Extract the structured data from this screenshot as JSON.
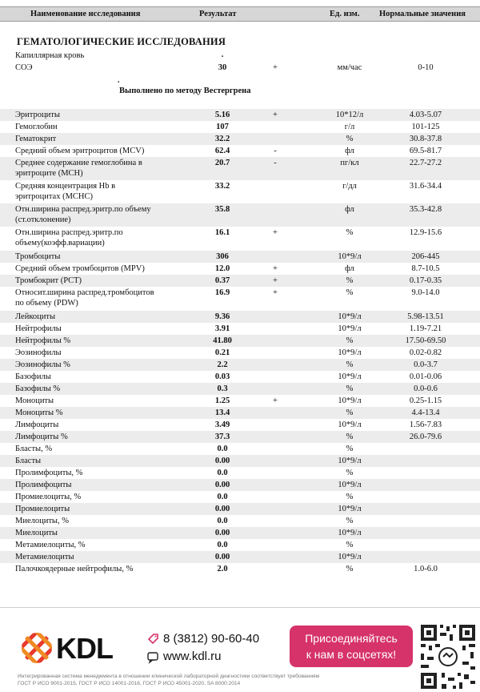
{
  "header": {
    "name": "Наименование исследования",
    "result": "Результат",
    "unit": "Ед. изм.",
    "norm": "Нормальные значения"
  },
  "section_title": "ГЕМАТОЛОГИЧЕСКИЕ ИССЛЕДОВАНИЯ",
  "capillary": {
    "label": "Капиллярная кровь",
    "value": "."
  },
  "method_note": {
    "dot": ".",
    "text": "Выполнено по методу Вестергрена"
  },
  "rows": [
    {
      "name": "СОЭ",
      "result": "30",
      "flag": "+",
      "unit": "мм/час",
      "norm": "0-10"
    },
    {
      "name": "Эритроциты",
      "result": "5.16",
      "flag": "+",
      "unit": "10*12/л",
      "norm": "4.03-5.07"
    },
    {
      "name": "Гемоглобин",
      "result": "107",
      "flag": "",
      "unit": "г/л",
      "norm": "101-125"
    },
    {
      "name": "Гематокрит",
      "result": "32.2",
      "flag": "",
      "unit": "%",
      "norm": "30.8-37.8"
    },
    {
      "name": "Средний объем эритроцитов (MCV)",
      "result": "62.4",
      "flag": "-",
      "unit": "фл",
      "norm": "69.5-81.7"
    },
    {
      "name": "Среднее содержание гемоглобина в",
      "name2": "эритроците (MCH)",
      "result": "20.7",
      "flag": "-",
      "unit": "пг/кл",
      "norm": "22.7-27.2"
    },
    {
      "name": "Средняя концентрация Hb в",
      "name2": "эритроцитах (MCHC)",
      "result": "33.2",
      "flag": "",
      "unit": "г/дл",
      "norm": "31.6-34.4"
    },
    {
      "name": "Отн.ширина распред.эритр.по объему",
      "name2": "(ст.отклонение)",
      "result": "35.8",
      "flag": "",
      "unit": "фл",
      "norm": "35.3-42.8"
    },
    {
      "name": "Отн.ширина распред.эритр.по",
      "name2": "объему(коэфф.вариации)",
      "result": "16.1",
      "flag": "+",
      "unit": "%",
      "norm": "12.9-15.6"
    },
    {
      "name": "Тромбоциты",
      "result": "306",
      "flag": "",
      "unit": "10*9/л",
      "norm": "206-445"
    },
    {
      "name": "Средний объем тромбоцитов (MPV)",
      "result": "12.0",
      "flag": "+",
      "unit": "фл",
      "norm": "8.7-10.5"
    },
    {
      "name": "Тромбокрит (PCT)",
      "result": "0.37",
      "flag": "+",
      "unit": "%",
      "norm": "0.17-0.35"
    },
    {
      "name": "Относит.ширина распред.тромбоцитов",
      "name2": "по объему (PDW)",
      "result": "16.9",
      "flag": "+",
      "unit": "%",
      "norm": "9.0-14.0"
    },
    {
      "name": "Лейкоциты",
      "result": "9.36",
      "flag": "",
      "unit": "10*9/л",
      "norm": "5.98-13.51"
    },
    {
      "name": "Нейтрофилы",
      "result": "3.91",
      "flag": "",
      "unit": "10*9/л",
      "norm": "1.19-7.21"
    },
    {
      "name": "Нейтрофилы %",
      "result": "41.80",
      "flag": "",
      "unit": "%",
      "norm": "17.50-69.50"
    },
    {
      "name": "Эозинофилы",
      "result": "0.21",
      "flag": "",
      "unit": "10*9/л",
      "norm": "0.02-0.82"
    },
    {
      "name": "Эозинофилы %",
      "result": "2.2",
      "flag": "",
      "unit": "%",
      "norm": "0.0-3.7"
    },
    {
      "name": "Базофилы",
      "result": "0.03",
      "flag": "",
      "unit": "10*9/л",
      "norm": "0.01-0.06"
    },
    {
      "name": "Базофилы %",
      "result": "0.3",
      "flag": "",
      "unit": "%",
      "norm": "0.0-0.6"
    },
    {
      "name": "Моноциты",
      "result": "1.25",
      "flag": "+",
      "unit": "10*9/л",
      "norm": "0.25-1.15"
    },
    {
      "name": "Моноциты %",
      "result": "13.4",
      "flag": "",
      "unit": "%",
      "norm": "4.4-13.4"
    },
    {
      "name": "Лимфоциты",
      "result": "3.49",
      "flag": "",
      "unit": "10*9/л",
      "norm": "1.56-7.83"
    },
    {
      "name": "Лимфоциты %",
      "result": "37.3",
      "flag": "",
      "unit": "%",
      "norm": "26.0-79.6"
    },
    {
      "name": "Бласты, %",
      "result": "0.0",
      "flag": "",
      "unit": "%",
      "norm": ""
    },
    {
      "name": "Бласты",
      "result": "0.00",
      "flag": "",
      "unit": "10*9/л",
      "norm": ""
    },
    {
      "name": "Пролимфоциты, %",
      "result": "0.0",
      "flag": "",
      "unit": "%",
      "norm": ""
    },
    {
      "name": "Пролимфоциты",
      "result": "0.00",
      "flag": "",
      "unit": "10*9/л",
      "norm": ""
    },
    {
      "name": "Промиелоциты, %",
      "result": "0.0",
      "flag": "",
      "unit": "%",
      "norm": ""
    },
    {
      "name": "Промиелоциты",
      "result": "0.00",
      "flag": "",
      "unit": "10*9/л",
      "norm": ""
    },
    {
      "name": "Миелоциты, %",
      "result": "0.0",
      "flag": "",
      "unit": "%",
      "norm": ""
    },
    {
      "name": "Миелоциты",
      "result": "0.00",
      "flag": "",
      "unit": "10*9/л",
      "norm": ""
    },
    {
      "name": "Метамиелоциты, %",
      "result": "0.0",
      "flag": "",
      "unit": "%",
      "norm": ""
    },
    {
      "name": "Метамиелоциты",
      "result": "0.00",
      "flag": "",
      "unit": "10*9/л",
      "norm": ""
    },
    {
      "name": "Палочкоядерные нейтрофилы, %",
      "result": "2.0",
      "flag": "",
      "unit": "%",
      "norm": "1.0-6.0"
    }
  ],
  "footer": {
    "logo": "KDL",
    "phone": "8 (3812) 90-60-40",
    "site": "www.kdl.ru",
    "promo_line1": "Присоединяйтесь",
    "promo_line2": "к нам в соцсетях!",
    "legal_line1": "Интегрированная система менеджмента в отношении клинической лабораторной диагностики соответствует требованиям",
    "legal_line2": "ГОСТ Р ИСО 9001-2015, ГОСТ Р ИСО 14001-2016, ГОСТ Р ИСО 45001-2020, SA 8000:2014",
    "logo_color": "#e63a2e",
    "promo_color": "#d6336a"
  }
}
